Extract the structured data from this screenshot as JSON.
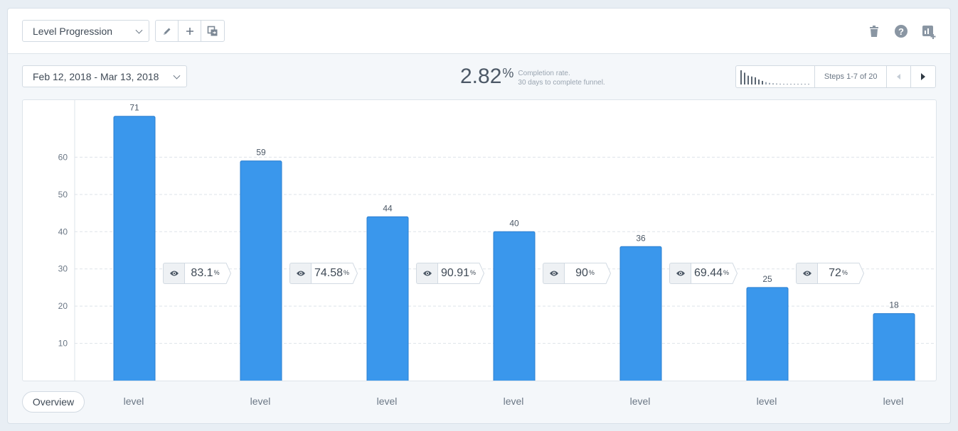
{
  "toolbar": {
    "report_select": "Level Progression",
    "icons": [
      "pencil-icon",
      "plus-icon",
      "duplicate-icon"
    ],
    "right_icons": [
      "trash-icon",
      "help-icon",
      "add-to-dashboard-icon"
    ]
  },
  "date_range": "Feb 12, 2018 - Mar 13, 2018",
  "completion": {
    "value": "2.82",
    "unit": "%",
    "line1": "Completion rate.",
    "line2": "30 days to complete funnel."
  },
  "stepper": {
    "label": "Steps 1-7 of 20",
    "spark_values": [
      71,
      59,
      44,
      40,
      36,
      25,
      18,
      12,
      8,
      6,
      5,
      4,
      3,
      3,
      3,
      2,
      2,
      2,
      2,
      2
    ]
  },
  "overview_button": "Overview",
  "colors": {
    "bar": "#3a97ec",
    "bar_border": "#2a7fd0",
    "grid": "#dde3e9"
  },
  "chart_data": {
    "type": "bar",
    "categories": [
      "level",
      "level",
      "level",
      "level",
      "level",
      "level",
      "level"
    ],
    "values": [
      71,
      59,
      44,
      40,
      36,
      25,
      18
    ],
    "data_labels": [
      "71",
      "59",
      "44",
      "40",
      "36",
      "25",
      "18"
    ],
    "yticks": [
      "10",
      "20",
      "30",
      "40",
      "50",
      "60"
    ],
    "ylim": [
      0,
      70
    ],
    "grid": true,
    "conversions": [
      {
        "value": "83.1",
        "unit": "%"
      },
      {
        "value": "74.58",
        "unit": "%"
      },
      {
        "value": "90.91",
        "unit": "%"
      },
      {
        "value": "90",
        "unit": "%"
      },
      {
        "value": "69.44",
        "unit": "%"
      },
      {
        "value": "72",
        "unit": "%"
      }
    ]
  }
}
